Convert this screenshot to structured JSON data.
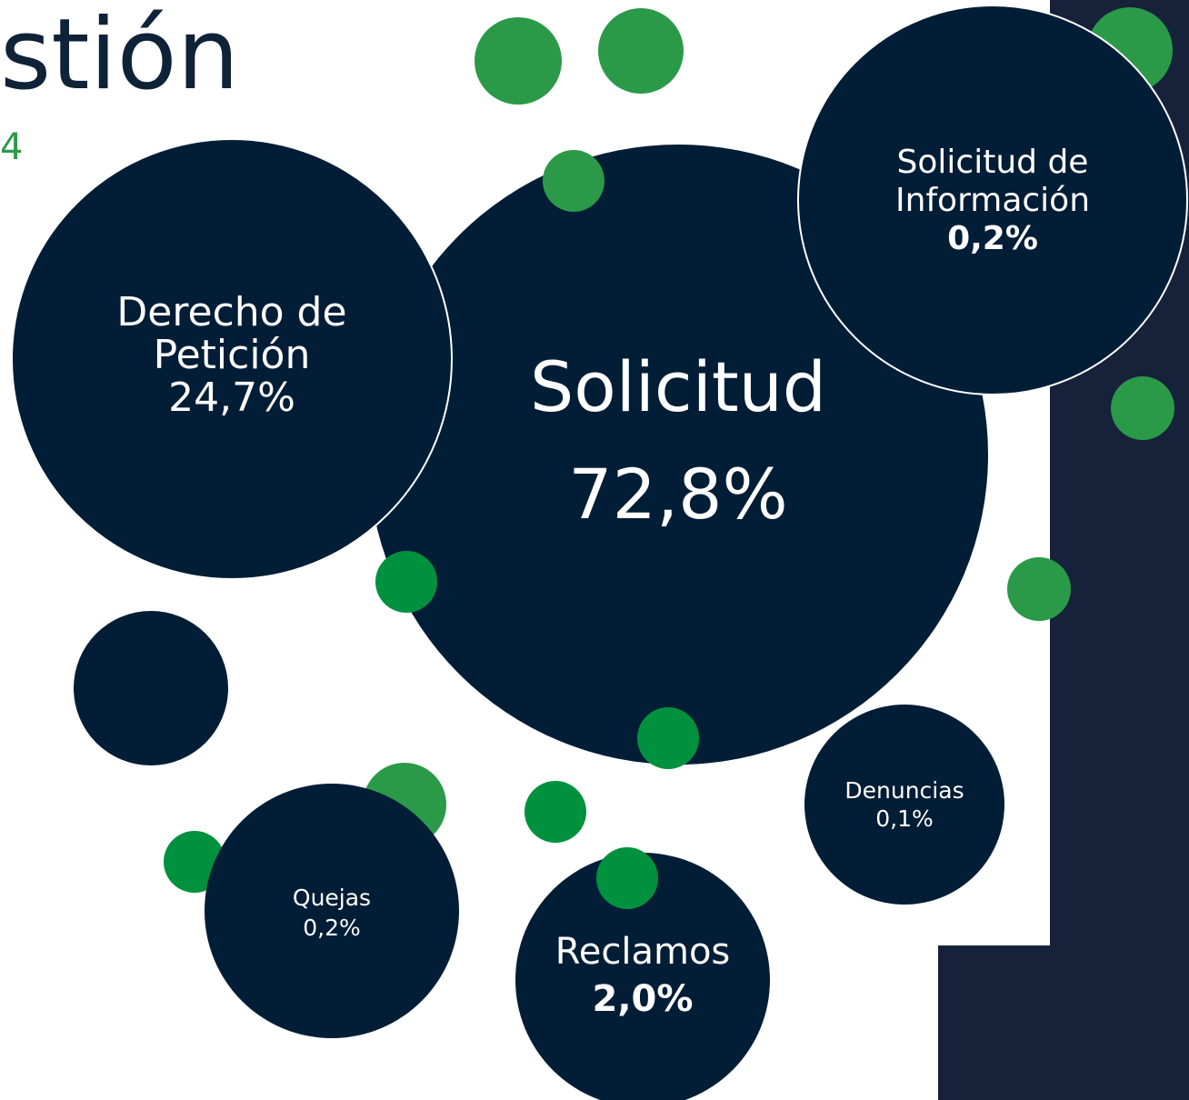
{
  "header": {
    "title": "stión",
    "subtitle": "4"
  },
  "bubbles": [
    {
      "label": [
        "Solicitud"
      ],
      "value": "72,8%"
    },
    {
      "label": [
        "Derecho de",
        "Petición"
      ],
      "value": "24,7%"
    },
    {
      "label": [
        "Solicitud de",
        "Información"
      ],
      "value": "0,2%"
    },
    {
      "label": [
        "Denuncias"
      ],
      "value": "0,1%"
    },
    {
      "label": [
        "Quejas"
      ],
      "value": "0,2%"
    },
    {
      "label": [
        "Reclamos"
      ],
      "value": "2,0%"
    }
  ]
}
